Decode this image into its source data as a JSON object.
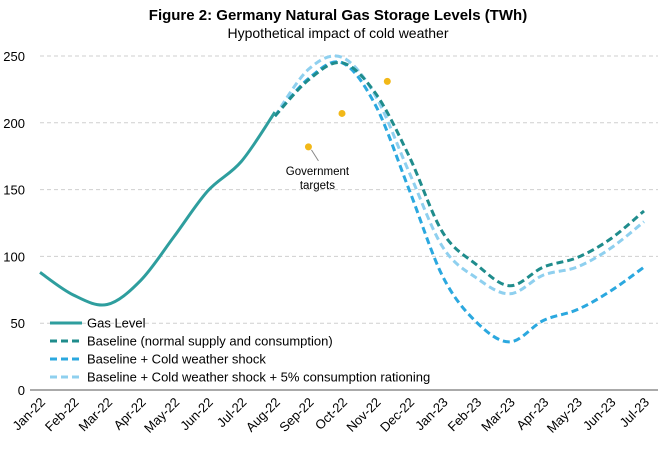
{
  "chart_data": {
    "type": "line",
    "title": "Figure 2: Germany Natural Gas Storage Levels (TWh)",
    "subtitle": "Hypothetical impact of cold weather",
    "categories": [
      "Jan-22",
      "Feb-22",
      "Mar-22",
      "Apr-22",
      "May-22",
      "Jun-22",
      "Jul-22",
      "Aug-22",
      "Sep-22",
      "Oct-22",
      "Nov-22",
      "Dec-22",
      "Jan-23",
      "Feb-23",
      "Mar-23",
      "Apr-23",
      "May-23",
      "Jun-23",
      "Jul-23"
    ],
    "ylim": [
      0,
      250
    ],
    "yticks": [
      0,
      50,
      100,
      150,
      200,
      250
    ],
    "grid": true,
    "legend_position": "bottom-left",
    "series": [
      {
        "name": "Gas Level",
        "color": "#2e9e9e",
        "style": "solid",
        "values": [
          88,
          71,
          64,
          82,
          115,
          149,
          171,
          208,
          null,
          null,
          null,
          null,
          null,
          null,
          null,
          null,
          null,
          null,
          null
        ]
      },
      {
        "name": "Baseline (normal supply and consumption)",
        "color": "#1f8c8c",
        "style": "dashed",
        "values": [
          null,
          null,
          null,
          null,
          null,
          null,
          null,
          205,
          232,
          245,
          222,
          175,
          118,
          94,
          78,
          92,
          99,
          113,
          134
        ]
      },
      {
        "name": "Baseline + Cold weather shock",
        "color": "#2ba8df",
        "style": "dashed",
        "values": [
          null,
          null,
          null,
          null,
          null,
          null,
          null,
          205,
          233,
          245,
          213,
          150,
          85,
          51,
          36,
          52,
          60,
          74,
          92
        ]
      },
      {
        "name": "Baseline + Cold weather shock + 5% consumption rationing",
        "color": "#8fd0ef",
        "style": "dashed",
        "values": [
          null,
          null,
          null,
          null,
          null,
          null,
          null,
          205,
          240,
          249,
          220,
          163,
          107,
          84,
          72,
          86,
          92,
          106,
          126
        ]
      }
    ],
    "points": [
      {
        "name": "Government targets",
        "color": "#f2b818",
        "x": [
          "Sep-22",
          "Oct-22",
          "Nov-22"
        ],
        "values": [
          182,
          207,
          231
        ]
      }
    ],
    "annotations": [
      {
        "text_lines": [
          "Government",
          "targets"
        ]
      }
    ]
  }
}
